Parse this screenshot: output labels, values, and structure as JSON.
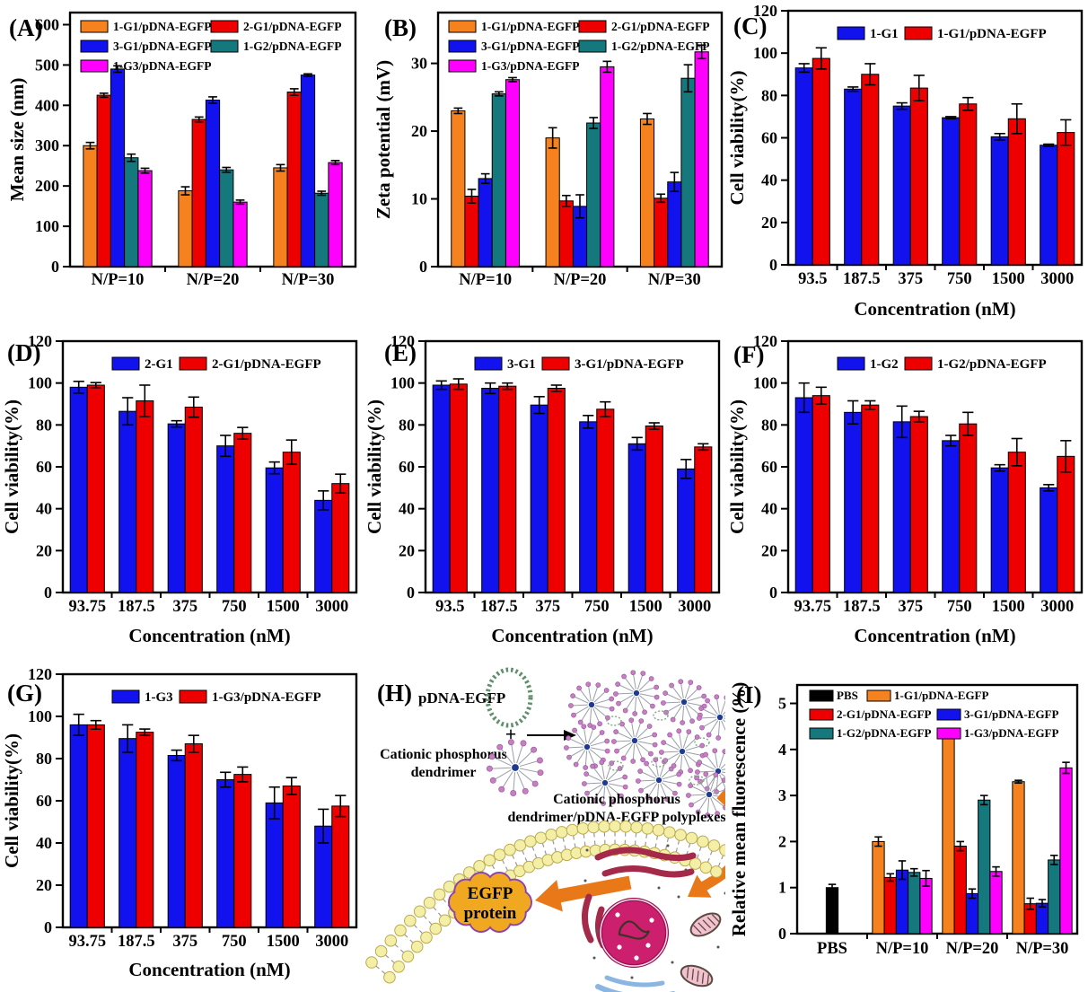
{
  "colors": {
    "orange": "#F5821F",
    "red": "#EE0000",
    "blue": "#1212EE",
    "teal": "#15787C",
    "magenta": "#FF00FF",
    "black": "#000000",
    "axis": "#000000",
    "arrow_orange": "#E87818",
    "membrane_fill": "#F4EFA6",
    "membrane_stroke": "#BCA94E",
    "cloud_fill": "#F0A820",
    "cloud_stroke": "#8E44AD",
    "nucleus_fill": "#CC1F6E",
    "er_stroke": "#A52A4A",
    "mito_fill": "#F4C2CF",
    "golgi_stroke": "#8CB6E2",
    "plasmid_stroke": "#5F8F6B",
    "dendrimer_center": "#1F3A93",
    "dendrimer_tip": "#C77FC0"
  },
  "chart_data": [
    {
      "id": "A",
      "letter": "(A)",
      "type": "bar",
      "ylabel": "Mean size (nm)",
      "xlabel": "",
      "ylim": [
        0,
        630
      ],
      "yticks": [
        0,
        100,
        200,
        300,
        400,
        500,
        600
      ],
      "grid": false,
      "legend_position": "top-inside-2col",
      "categories": [
        "N/P=10",
        "N/P=20",
        "N/P=30"
      ],
      "series": [
        {
          "name": "1-G1/pDNA-EGFP",
          "color": "orange",
          "values": [
            300,
            188,
            245
          ],
          "errors": [
            8,
            10,
            8
          ]
        },
        {
          "name": "2-G1/pDNA-EGFP",
          "color": "red",
          "values": [
            425,
            365,
            433
          ],
          "errors": [
            5,
            6,
            8
          ]
        },
        {
          "name": "3-G1/pDNA-EGFP",
          "color": "blue",
          "values": [
            490,
            413,
            475
          ],
          "errors": [
            8,
            8,
            3
          ]
        },
        {
          "name": "1-G2/pDNA-EGFP",
          "color": "teal",
          "values": [
            270,
            240,
            182
          ],
          "errors": [
            9,
            6,
            5
          ]
        },
        {
          "name": "1-G3/pDNA-EGFP",
          "color": "magenta",
          "values": [
            238,
            160,
            258
          ],
          "errors": [
            6,
            5,
            5
          ]
        }
      ]
    },
    {
      "id": "B",
      "letter": "(B)",
      "type": "bar",
      "ylabel": "Zeta potential (mV)",
      "xlabel": "",
      "ylim": [
        0,
        37.5
      ],
      "yticks": [
        0,
        10,
        20,
        30
      ],
      "grid": false,
      "legend_position": "top-inside-2col",
      "categories": [
        "N/P=10",
        "N/P=20",
        "N/P=30"
      ],
      "series": [
        {
          "name": "1-G1/pDNA-EGFP",
          "color": "orange",
          "values": [
            23.0,
            19.0,
            21.8
          ],
          "errors": [
            0.4,
            1.5,
            0.8
          ]
        },
        {
          "name": "2-G1/pDNA-EGFP",
          "color": "red",
          "values": [
            10.4,
            9.7,
            10.1
          ],
          "errors": [
            1.0,
            0.8,
            0.6
          ]
        },
        {
          "name": "3-G1/pDNA-EGFP",
          "color": "blue",
          "values": [
            13.0,
            8.9,
            12.5
          ],
          "errors": [
            0.7,
            1.7,
            1.4
          ]
        },
        {
          "name": "1-G2/pDNA-EGFP",
          "color": "teal",
          "values": [
            25.5,
            21.2,
            27.8
          ],
          "errors": [
            0.3,
            0.8,
            2.0
          ]
        },
        {
          "name": "1-G3/pDNA-EGFP",
          "color": "magenta",
          "values": [
            27.6,
            29.5,
            31.7
          ],
          "errors": [
            0.3,
            0.8,
            1.0
          ]
        }
      ]
    },
    {
      "id": "C",
      "letter": "(C)",
      "type": "bar",
      "ylabel": "Cell viability(%)",
      "xlabel": "Concentration (nM)",
      "ylim": [
        0,
        120
      ],
      "yticks": [
        0,
        20,
        40,
        60,
        80,
        100,
        120
      ],
      "grid": false,
      "legend_position": "top-inside-1row",
      "categories": [
        "93.5",
        "187.5",
        "375",
        "750",
        "1500",
        "3000"
      ],
      "series": [
        {
          "name": "1-G1",
          "color": "blue",
          "values": [
            93,
            83,
            75,
            69.5,
            60.5,
            56.5
          ],
          "errors": [
            2,
            1,
            1.5,
            0.5,
            1.5,
            0.5
          ]
        },
        {
          "name": "1-G1/pDNA-EGFP",
          "color": "red",
          "values": [
            97.5,
            90,
            83.5,
            76,
            69,
            62.5
          ],
          "errors": [
            5,
            5,
            6,
            3,
            7,
            6
          ]
        }
      ]
    },
    {
      "id": "D",
      "letter": "(D)",
      "type": "bar",
      "ylabel": "Cell viability(%)",
      "xlabel": "Concentration (nM)",
      "ylim": [
        0,
        120
      ],
      "yticks": [
        0,
        20,
        40,
        60,
        80,
        100,
        120
      ],
      "grid": false,
      "legend_position": "top-inside-1row",
      "categories": [
        "93.75",
        "187.5",
        "375",
        "750",
        "1500",
        "3000"
      ],
      "series": [
        {
          "name": "2-G1",
          "color": "blue",
          "values": [
            98,
            86.5,
            80.5,
            70,
            59.5,
            44
          ],
          "errors": [
            2.8,
            6.5,
            1.5,
            5,
            2.8,
            4.5
          ]
        },
        {
          "name": "2-G1/pDNA-EGFP",
          "color": "red",
          "values": [
            99,
            91.5,
            88.5,
            76,
            67,
            52
          ],
          "errors": [
            1.2,
            7.5,
            4.8,
            2.8,
            5.8,
            4.5
          ]
        }
      ]
    },
    {
      "id": "E",
      "letter": "(E)",
      "type": "bar",
      "ylabel": "Cell viability(%)",
      "xlabel": "Concentration (nM)",
      "ylim": [
        0,
        120
      ],
      "yticks": [
        0,
        20,
        40,
        60,
        80,
        100,
        120
      ],
      "grid": false,
      "legend_position": "top-inside-1row",
      "categories": [
        "93.5",
        "187.5",
        "375",
        "750",
        "1500",
        "3000"
      ],
      "series": [
        {
          "name": "3-G1",
          "color": "blue",
          "values": [
            99,
            97.5,
            89.5,
            81.5,
            71,
            59
          ],
          "errors": [
            2,
            2.5,
            4,
            3,
            3,
            4.5
          ]
        },
        {
          "name": "3-G1/pDNA-EGFP",
          "color": "red",
          "values": [
            99.5,
            98.5,
            97.5,
            87.5,
            79.5,
            69.5
          ],
          "errors": [
            2.5,
            1.5,
            1.5,
            3.5,
            1.5,
            1.5
          ]
        }
      ]
    },
    {
      "id": "F",
      "letter": "(F)",
      "type": "bar",
      "ylabel": "Cell viability(%)",
      "xlabel": "Concentration (nM)",
      "ylim": [
        0,
        120
      ],
      "yticks": [
        0,
        20,
        40,
        60,
        80,
        100,
        120
      ],
      "grid": false,
      "legend_position": "top-inside-1row",
      "categories": [
        "93.75",
        "187.5",
        "375",
        "750",
        "1500",
        "3000"
      ],
      "series": [
        {
          "name": "1-G2",
          "color": "blue",
          "values": [
            93,
            86,
            81.5,
            72.5,
            59.5,
            50
          ],
          "errors": [
            7,
            5.5,
            7.5,
            2.5,
            1.5,
            1.5
          ]
        },
        {
          "name": "1-G2/pDNA-EGFP",
          "color": "red",
          "values": [
            94,
            89.5,
            84,
            80.5,
            67,
            65
          ],
          "errors": [
            4,
            2,
            2.5,
            5.5,
            6.5,
            7.5
          ]
        }
      ]
    },
    {
      "id": "G",
      "letter": "(G)",
      "type": "bar",
      "ylabel": "Cell viability(%)",
      "xlabel": "Concentration (nM)",
      "ylim": [
        0,
        120
      ],
      "yticks": [
        0,
        20,
        40,
        60,
        80,
        100,
        120
      ],
      "grid": false,
      "legend_position": "top-inside-1row",
      "categories": [
        "93.75",
        "187.5",
        "375",
        "750",
        "1500",
        "3000"
      ],
      "series": [
        {
          "name": "1-G3",
          "color": "blue",
          "values": [
            96,
            89.5,
            81.5,
            70,
            59,
            48
          ],
          "errors": [
            5,
            6.5,
            2.5,
            3.5,
            7.5,
            8
          ]
        },
        {
          "name": "1-G3/pDNA-EGFP",
          "color": "red",
          "values": [
            96,
            92.5,
            87,
            72.5,
            67,
            57.5
          ],
          "errors": [
            2,
            1.5,
            4,
            3.5,
            4,
            5
          ]
        }
      ]
    },
    {
      "id": "I",
      "letter": "(I)",
      "type": "bar",
      "ylabel": "Relative mean fluorescence (%)",
      "xlabel": "",
      "ylim": [
        0,
        5.4
      ],
      "yticks": [
        0,
        1,
        2,
        3,
        4,
        5
      ],
      "grid": false,
      "legend_position": "top-inside-2col",
      "categories": [
        "PBS",
        "N/P=10",
        "N/P=20",
        "N/P=30"
      ],
      "series": [
        {
          "name": "PBS",
          "color": "black",
          "values": [
            1.0,
            null,
            null,
            null
          ],
          "errors": [
            0.07,
            null,
            null,
            null
          ]
        },
        {
          "name": "1-G1/pDNA-EGFP",
          "color": "orange",
          "values": [
            null,
            2.0,
            4.35,
            3.3
          ],
          "errors": [
            null,
            0.1,
            0.05,
            0.03
          ]
        },
        {
          "name": "2-G1/pDNA-EGFP",
          "color": "red",
          "values": [
            null,
            1.22,
            1.9,
            0.65
          ],
          "errors": [
            null,
            0.08,
            0.1,
            0.12
          ]
        },
        {
          "name": "3-G1/pDNA-EGFP",
          "color": "blue",
          "values": [
            null,
            1.38,
            0.87,
            0.66
          ],
          "errors": [
            null,
            0.2,
            0.1,
            0.08
          ]
        },
        {
          "name": "1-G2/pDNA-EGFP",
          "color": "teal",
          "values": [
            null,
            1.33,
            2.9,
            1.6
          ],
          "errors": [
            null,
            0.08,
            0.1,
            0.1
          ]
        },
        {
          "name": "1-G3/pDNA-EGFP",
          "color": "magenta",
          "values": [
            null,
            1.2,
            1.35,
            3.6
          ],
          "errors": [
            null,
            0.17,
            0.1,
            0.12
          ]
        }
      ]
    }
  ],
  "diagram": {
    "letter": "(H)",
    "pdna_label": "pDNA-EGFP",
    "plus": "+",
    "dendrimer_label_line1": "Cationic phosphorus",
    "dendrimer_label_line2": "dendrimer",
    "polyplex_label_line1": "Cationic phosphorus",
    "polyplex_label_line2": "dendrimer/pDNA-EGFP polyplexes",
    "egfp_line1": "EGFP",
    "egfp_line2": "protein"
  }
}
